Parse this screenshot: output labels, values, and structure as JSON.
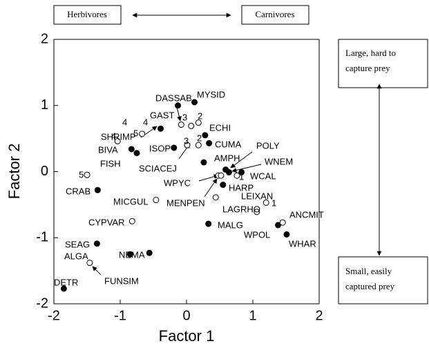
{
  "chart_data": {
    "type": "scatter",
    "xlabel": "Factor 1",
    "ylabel": "Factor 2",
    "xlim": [
      -2,
      2
    ],
    "ylim": [
      -2,
      2
    ],
    "xticks": [
      -2,
      -1,
      0,
      1,
      2
    ],
    "yticks": [
      -2,
      -1,
      0,
      1,
      2
    ],
    "series": [
      {
        "color": "#000000",
        "marker": "filled",
        "x": [
          -1.85,
          -1.35,
          -0.85,
          -0.56,
          -1.34,
          -0.83,
          -0.75,
          -0.39,
          -0.13,
          0.12,
          -0.19,
          0.28,
          0.34,
          0.26,
          0.59,
          0.64,
          0.83,
          0.55,
          0.33,
          1.38,
          1.51
        ],
        "y": [
          -1.77,
          -1.09,
          -1.25,
          -1.23,
          -0.28,
          0.34,
          0.28,
          0.65,
          1.0,
          1.05,
          0.36,
          0.55,
          0.43,
          0.14,
          0.03,
          -0.01,
          -0.01,
          -0.2,
          -0.79,
          -0.81,
          -0.95
        ]
      },
      {
        "color": "#000000",
        "marker": "open",
        "x": [
          -1.5,
          -1.04,
          -0.67,
          -0.08,
          0.07,
          0.18,
          0.01,
          0.18,
          -0.46,
          -0.82,
          -1.46,
          1.2,
          1.06,
          1.45,
          0.48,
          0.52,
          0.76,
          0.44
        ],
        "y": [
          -0.05,
          0.46,
          0.57,
          0.71,
          0.69,
          0.74,
          0.4,
          0.4,
          -0.43,
          -0.75,
          -1.38,
          -0.47,
          -0.61,
          -0.77,
          -0.06,
          -0.06,
          -0.06,
          -0.39
        ]
      }
    ],
    "annotations": [
      "DASSAB",
      "MYSID",
      "GAST",
      "SHRIMP",
      "4",
      "4",
      "5",
      "3",
      "2",
      "ECHI",
      "3",
      "2",
      "CUMA",
      "4",
      "BIVA",
      "ISOP",
      "POLY",
      "WNEM",
      "FISH",
      "SCIACEJ",
      "AMPH",
      "5",
      "WCAL",
      "1",
      "WPYC",
      "HARP",
      "CRAB",
      "LEIXAN",
      "MICGUL",
      "MENPEN",
      "1",
      "LAGRHO",
      "ANCMIT",
      "CYPVAR",
      "MALG",
      "WPOL",
      "WHAR",
      "SEAG",
      "ALGA",
      "NEMA",
      "FUNSIM",
      "DETR"
    ],
    "side_labels": {
      "left_top": "Herbivores",
      "right_top": "Carnivores",
      "upper": [
        "Large, hard to",
        "capture prey"
      ],
      "lower": [
        "Small, easily",
        "captured prey"
      ]
    }
  }
}
